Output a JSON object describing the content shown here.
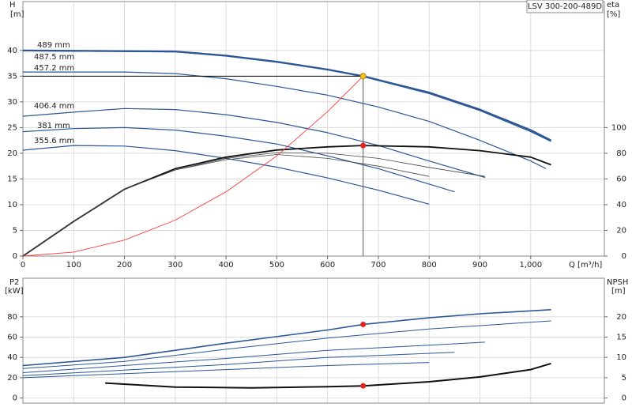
{
  "chart_data": [
    {
      "type": "line",
      "title": "LSV 300-200-489D",
      "y_label": "H",
      "y_unit": "[m]",
      "y2_label": "eta",
      "y2_unit": "[%]",
      "x_label": "Q [m³/h]",
      "xlim": [
        0,
        1145
      ],
      "ylim": [
        0,
        49.5
      ],
      "y2lim": [
        0,
        198
      ],
      "grid": true,
      "xticks": [
        0,
        100,
        200,
        300,
        400,
        500,
        600,
        700,
        800,
        900,
        {
          "value": 1000,
          "label": "1,000"
        }
      ],
      "yticks": [
        0,
        5,
        10,
        15,
        20,
        25,
        30,
        35,
        40
      ],
      "y2ticks": [
        0,
        20,
        40,
        60,
        80,
        100
      ],
      "series": [
        {
          "name": "489 mm",
          "color": "#2b5797",
          "width": 2.2,
          "x": [
            0,
            300,
            400,
            500,
            600,
            670,
            800,
            900,
            1000,
            1040
          ],
          "values": [
            40,
            39.8,
            39,
            37.8,
            36.3,
            35,
            31.8,
            28.5,
            24.5,
            22.5
          ]
        },
        {
          "name": "487.5 mm",
          "color": "#2b5797",
          "width": 1.2,
          "x": [
            0,
            300,
            400,
            500,
            600,
            670,
            800,
            900,
            1000,
            1040
          ],
          "values": [
            39.9,
            39.7,
            38.9,
            37.7,
            36.2,
            34.9,
            31.6,
            28.3,
            24.2,
            22.3
          ]
        },
        {
          "name": "457.2 mm",
          "color": "#2b5797",
          "width": 1.2,
          "x": [
            0,
            200,
            300,
            400,
            500,
            600,
            700,
            800,
            900,
            1000,
            1030
          ],
          "values": [
            35.8,
            35.8,
            35.5,
            34.5,
            33,
            31.3,
            29,
            26.2,
            22.5,
            18.5,
            17
          ]
        },
        {
          "name": "406.4 mm",
          "color": "#2b5797",
          "width": 1.2,
          "x": [
            0,
            100,
            200,
            300,
            400,
            500,
            600,
            700,
            800,
            910
          ],
          "values": [
            27.2,
            28,
            28.7,
            28.5,
            27.5,
            26,
            24,
            21.5,
            18.5,
            15.3
          ]
        },
        {
          "name": "381 mm",
          "color": "#2b5797",
          "width": 1.2,
          "x": [
            0,
            100,
            200,
            300,
            400,
            500,
            600,
            700,
            800,
            850
          ],
          "values": [
            24.2,
            24.8,
            25,
            24.5,
            23.3,
            21.8,
            19.5,
            17,
            14,
            12.5
          ]
        },
        {
          "name": "355.6 mm",
          "color": "#2b5797",
          "width": 1.2,
          "x": [
            0,
            100,
            200,
            300,
            400,
            500,
            600,
            700,
            800
          ],
          "values": [
            20.6,
            21.5,
            21.4,
            20.5,
            19,
            17.3,
            15.2,
            12.8,
            10.1
          ]
        },
        {
          "color": "#111111",
          "width": 1.8,
          "axis": "y2",
          "x": [
            0,
            100,
            200,
            300,
            400,
            500,
            600,
            670,
            800,
            900,
            1000,
            1040
          ],
          "values": [
            0,
            27,
            52,
            68,
            77,
            82.5,
            85,
            86,
            85,
            82,
            77,
            71
          ]
        },
        {
          "color": "#444444",
          "width": 0.8,
          "axis": "y2",
          "x": [
            0,
            100,
            200,
            300,
            400,
            500,
            600,
            700,
            800,
            910
          ],
          "values": [
            0,
            27,
            52,
            67,
            76,
            80.5,
            80,
            76,
            69,
            62
          ]
        },
        {
          "color": "#444444",
          "width": 0.8,
          "axis": "y2",
          "x": [
            0,
            100,
            200,
            300,
            400,
            500,
            600,
            700,
            800
          ],
          "values": [
            0,
            27,
            52,
            67,
            75,
            79,
            76,
            70,
            62
          ]
        },
        {
          "color": "#ff3b3b",
          "width": 0.9,
          "x": [
            0,
            100,
            200,
            300,
            400,
            500,
            600,
            670
          ],
          "values": [
            0,
            0.78,
            3.12,
            7,
            12.5,
            19.5,
            28.1,
            35
          ]
        },
        {
          "style": "point",
          "guides": true,
          "color": "#f5c518",
          "x": [
            670
          ],
          "values": [
            35
          ]
        },
        {
          "style": "point",
          "color": "#e82020",
          "axis": "y2",
          "x": [
            670
          ],
          "values": [
            86
          ]
        }
      ]
    },
    {
      "type": "line",
      "y_label": "P2",
      "y_unit": "[kW]",
      "y2_label": "NPSH",
      "y2_unit": "[m]",
      "xlim": [
        0,
        1145
      ],
      "ylim": [
        -5,
        118
      ],
      "y2lim": [
        -1.25,
        29.5
      ],
      "grid": true,
      "yticks": [
        0,
        20,
        40,
        60,
        80
      ],
      "y2ticks": [
        0,
        5,
        10,
        15,
        20
      ],
      "series": [
        {
          "color": "#2b5797",
          "width": 1.6,
          "x": [
            0,
            200,
            400,
            600,
            670,
            800,
            900,
            1040
          ],
          "values": [
            32,
            40,
            54,
            67,
            72.5,
            79,
            83,
            87
          ]
        },
        {
          "color": "#2b5797",
          "width": 1,
          "x": [
            0,
            200,
            400,
            600,
            800,
            1040
          ],
          "values": [
            29,
            36,
            48,
            59,
            68,
            76
          ]
        },
        {
          "color": "#2b5797",
          "width": 1,
          "x": [
            0,
            400,
            600,
            800,
            910
          ],
          "values": [
            25,
            39,
            47,
            52,
            55
          ]
        },
        {
          "color": "#2b5797",
          "width": 1,
          "x": [
            0,
            400,
            600,
            850
          ],
          "values": [
            22,
            33,
            40,
            45
          ]
        },
        {
          "color": "#2b5797",
          "width": 1,
          "x": [
            0,
            400,
            600,
            800
          ],
          "values": [
            20,
            28,
            32,
            35
          ]
        },
        {
          "color": "#111111",
          "width": 2,
          "axis": "y2",
          "x": [
            162,
            300,
            450,
            600,
            670,
            800,
            900,
            1000,
            1040
          ],
          "values": [
            3.7,
            2.7,
            2.5,
            2.8,
            3,
            4,
            5.2,
            7,
            8.5
          ]
        },
        {
          "style": "point",
          "color": "#e82020",
          "x": [
            670
          ],
          "values": [
            72.5
          ]
        },
        {
          "style": "point",
          "color": "#e82020",
          "axis": "y2",
          "x": [
            670
          ],
          "values": [
            3
          ]
        }
      ]
    }
  ]
}
